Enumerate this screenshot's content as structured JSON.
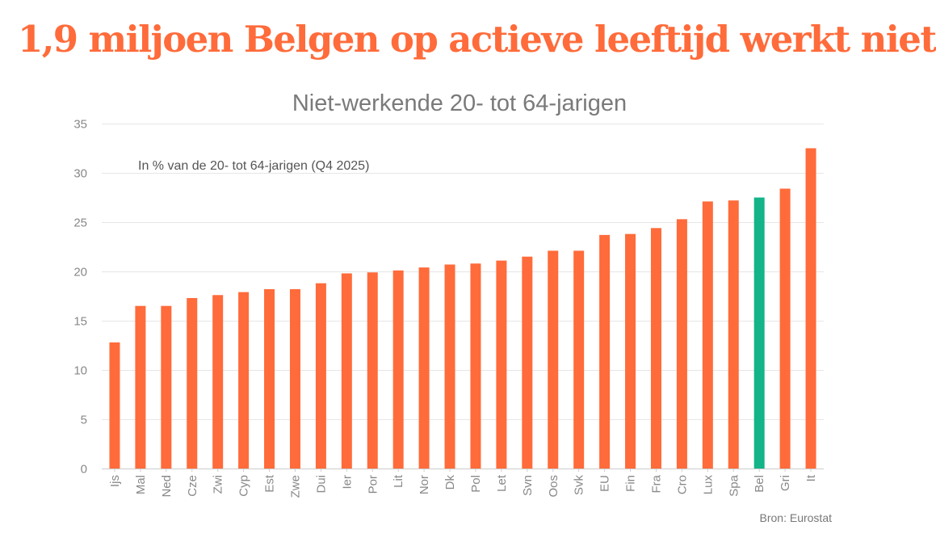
{
  "headline": "1,9 miljoen Belgen op actieve leeftijd werkt niet",
  "source": "Bron: Eurostat",
  "colors": {
    "bar": "#ff6b3a",
    "highlight": "#12b488",
    "headline": "#ff6b3a"
  },
  "chart_data": {
    "type": "bar",
    "title": "Niet-werkende 20- tot 64-jarigen",
    "subtitle": "In % van de 20- tot 64-jarigen (Q4 2025)",
    "xlabel": "",
    "ylabel": "",
    "ylim": [
      0,
      35
    ],
    "yticks": [
      0,
      5,
      10,
      15,
      20,
      25,
      30,
      35
    ],
    "grid": true,
    "categories": [
      "Ijs",
      "Mal",
      "Ned",
      "Cze",
      "Zwi",
      "Cyp",
      "Est",
      "Zwe",
      "Dui",
      "Ier",
      "Por",
      "Lit",
      "Nor",
      "Dk",
      "Pol",
      "Let",
      "Svn",
      "Oos",
      "Svk",
      "EU",
      "Fin",
      "Fra",
      "Cro",
      "Lux",
      "Spa",
      "Bel",
      "Gri",
      "It"
    ],
    "values": [
      12.8,
      16.5,
      16.5,
      17.3,
      17.6,
      17.9,
      18.2,
      18.2,
      18.8,
      19.8,
      19.9,
      20.1,
      20.4,
      20.7,
      20.8,
      21.1,
      21.5,
      22.1,
      22.1,
      23.7,
      23.8,
      24.4,
      25.3,
      27.1,
      27.2,
      27.5,
      28.4,
      32.5
    ],
    "highlight": "Bel"
  }
}
